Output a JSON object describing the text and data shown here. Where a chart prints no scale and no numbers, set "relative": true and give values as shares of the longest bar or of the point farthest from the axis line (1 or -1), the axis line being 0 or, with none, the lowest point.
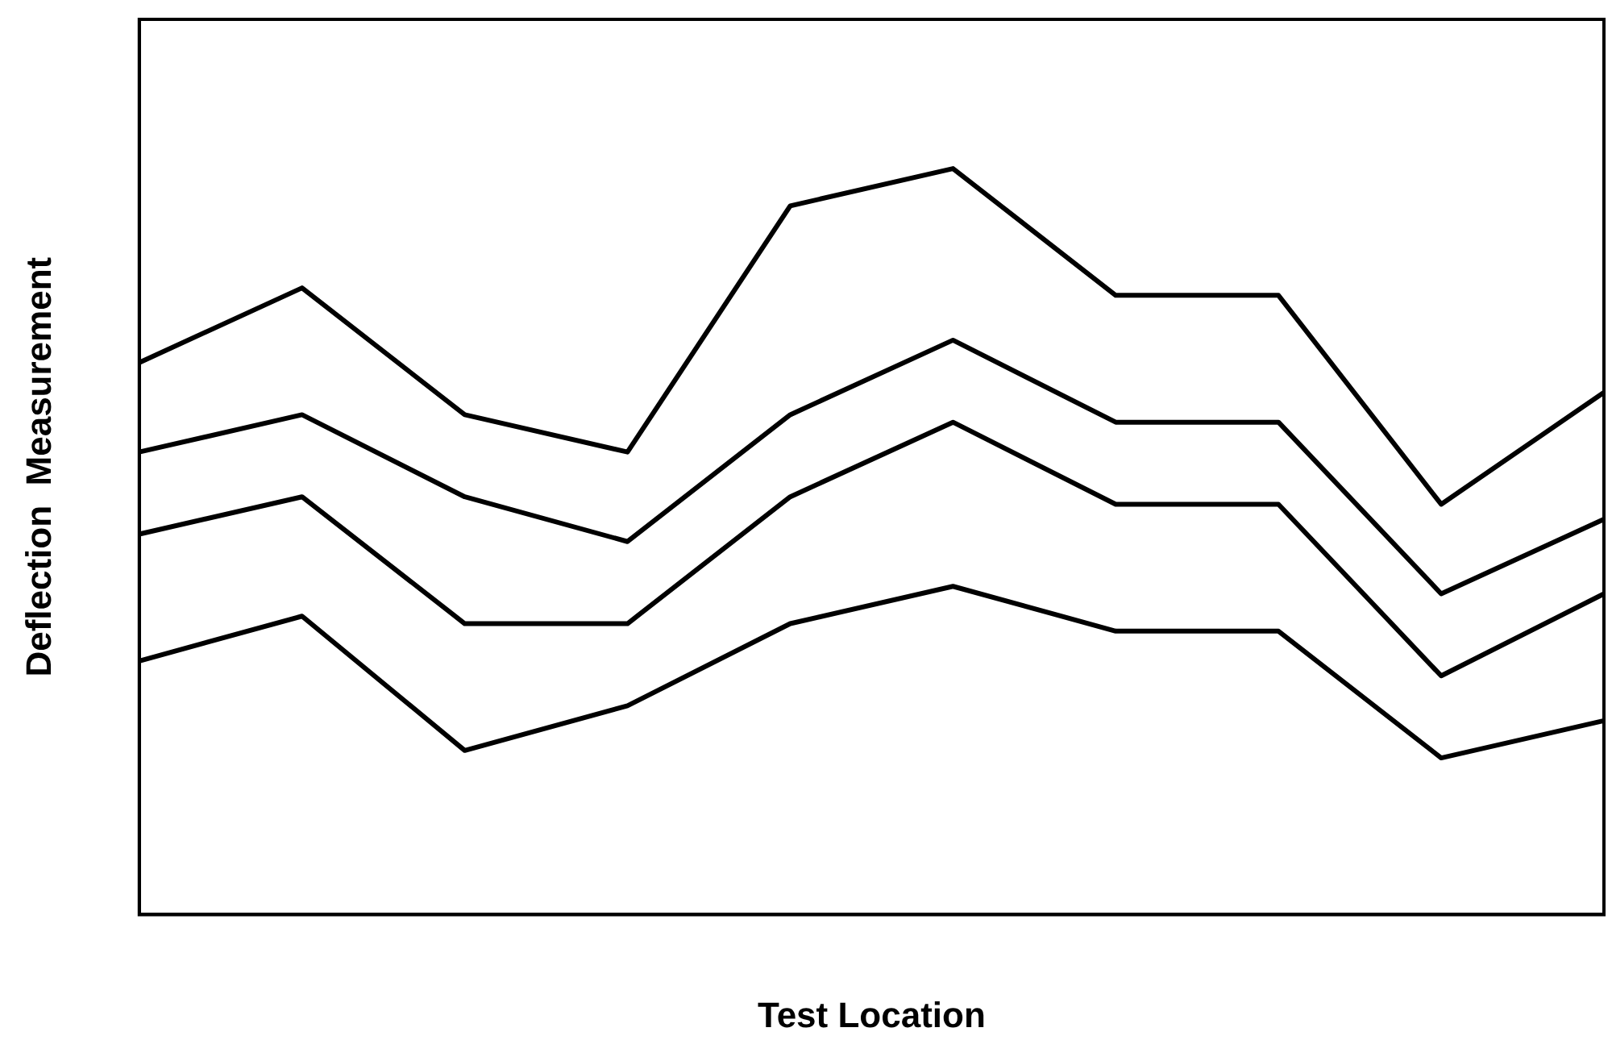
{
  "chart_data": {
    "type": "line",
    "relative": true,
    "xlabel": "Test Location",
    "ylabel": "Deflection  Measurement",
    "categories": [
      null,
      null,
      null,
      null,
      null,
      null,
      null,
      null,
      null,
      null
    ],
    "marker": "none",
    "line_style": "solid",
    "grid": false,
    "legend": false,
    "series": [
      {
        "color": "#000000",
        "values": [
          0.74,
          0.84,
          0.67,
          0.62,
          0.95,
          1,
          0.83,
          0.83,
          0.55,
          0.7
        ]
      },
      {
        "color": "#000000",
        "values": [
          0.62,
          0.67,
          0.56,
          0.5,
          0.67,
          0.77,
          0.66,
          0.66,
          0.43,
          0.53
        ]
      },
      {
        "color": "#000000",
        "values": [
          0.51,
          0.56,
          0.39,
          0.39,
          0.56,
          0.66,
          0.55,
          0.55,
          0.32,
          0.43
        ]
      },
      {
        "color": "#000000",
        "values": [
          0.34,
          0.4,
          0.22,
          0.28,
          0.39,
          0.44,
          0.38,
          0.38,
          0.21,
          0.26
        ]
      }
    ]
  }
}
